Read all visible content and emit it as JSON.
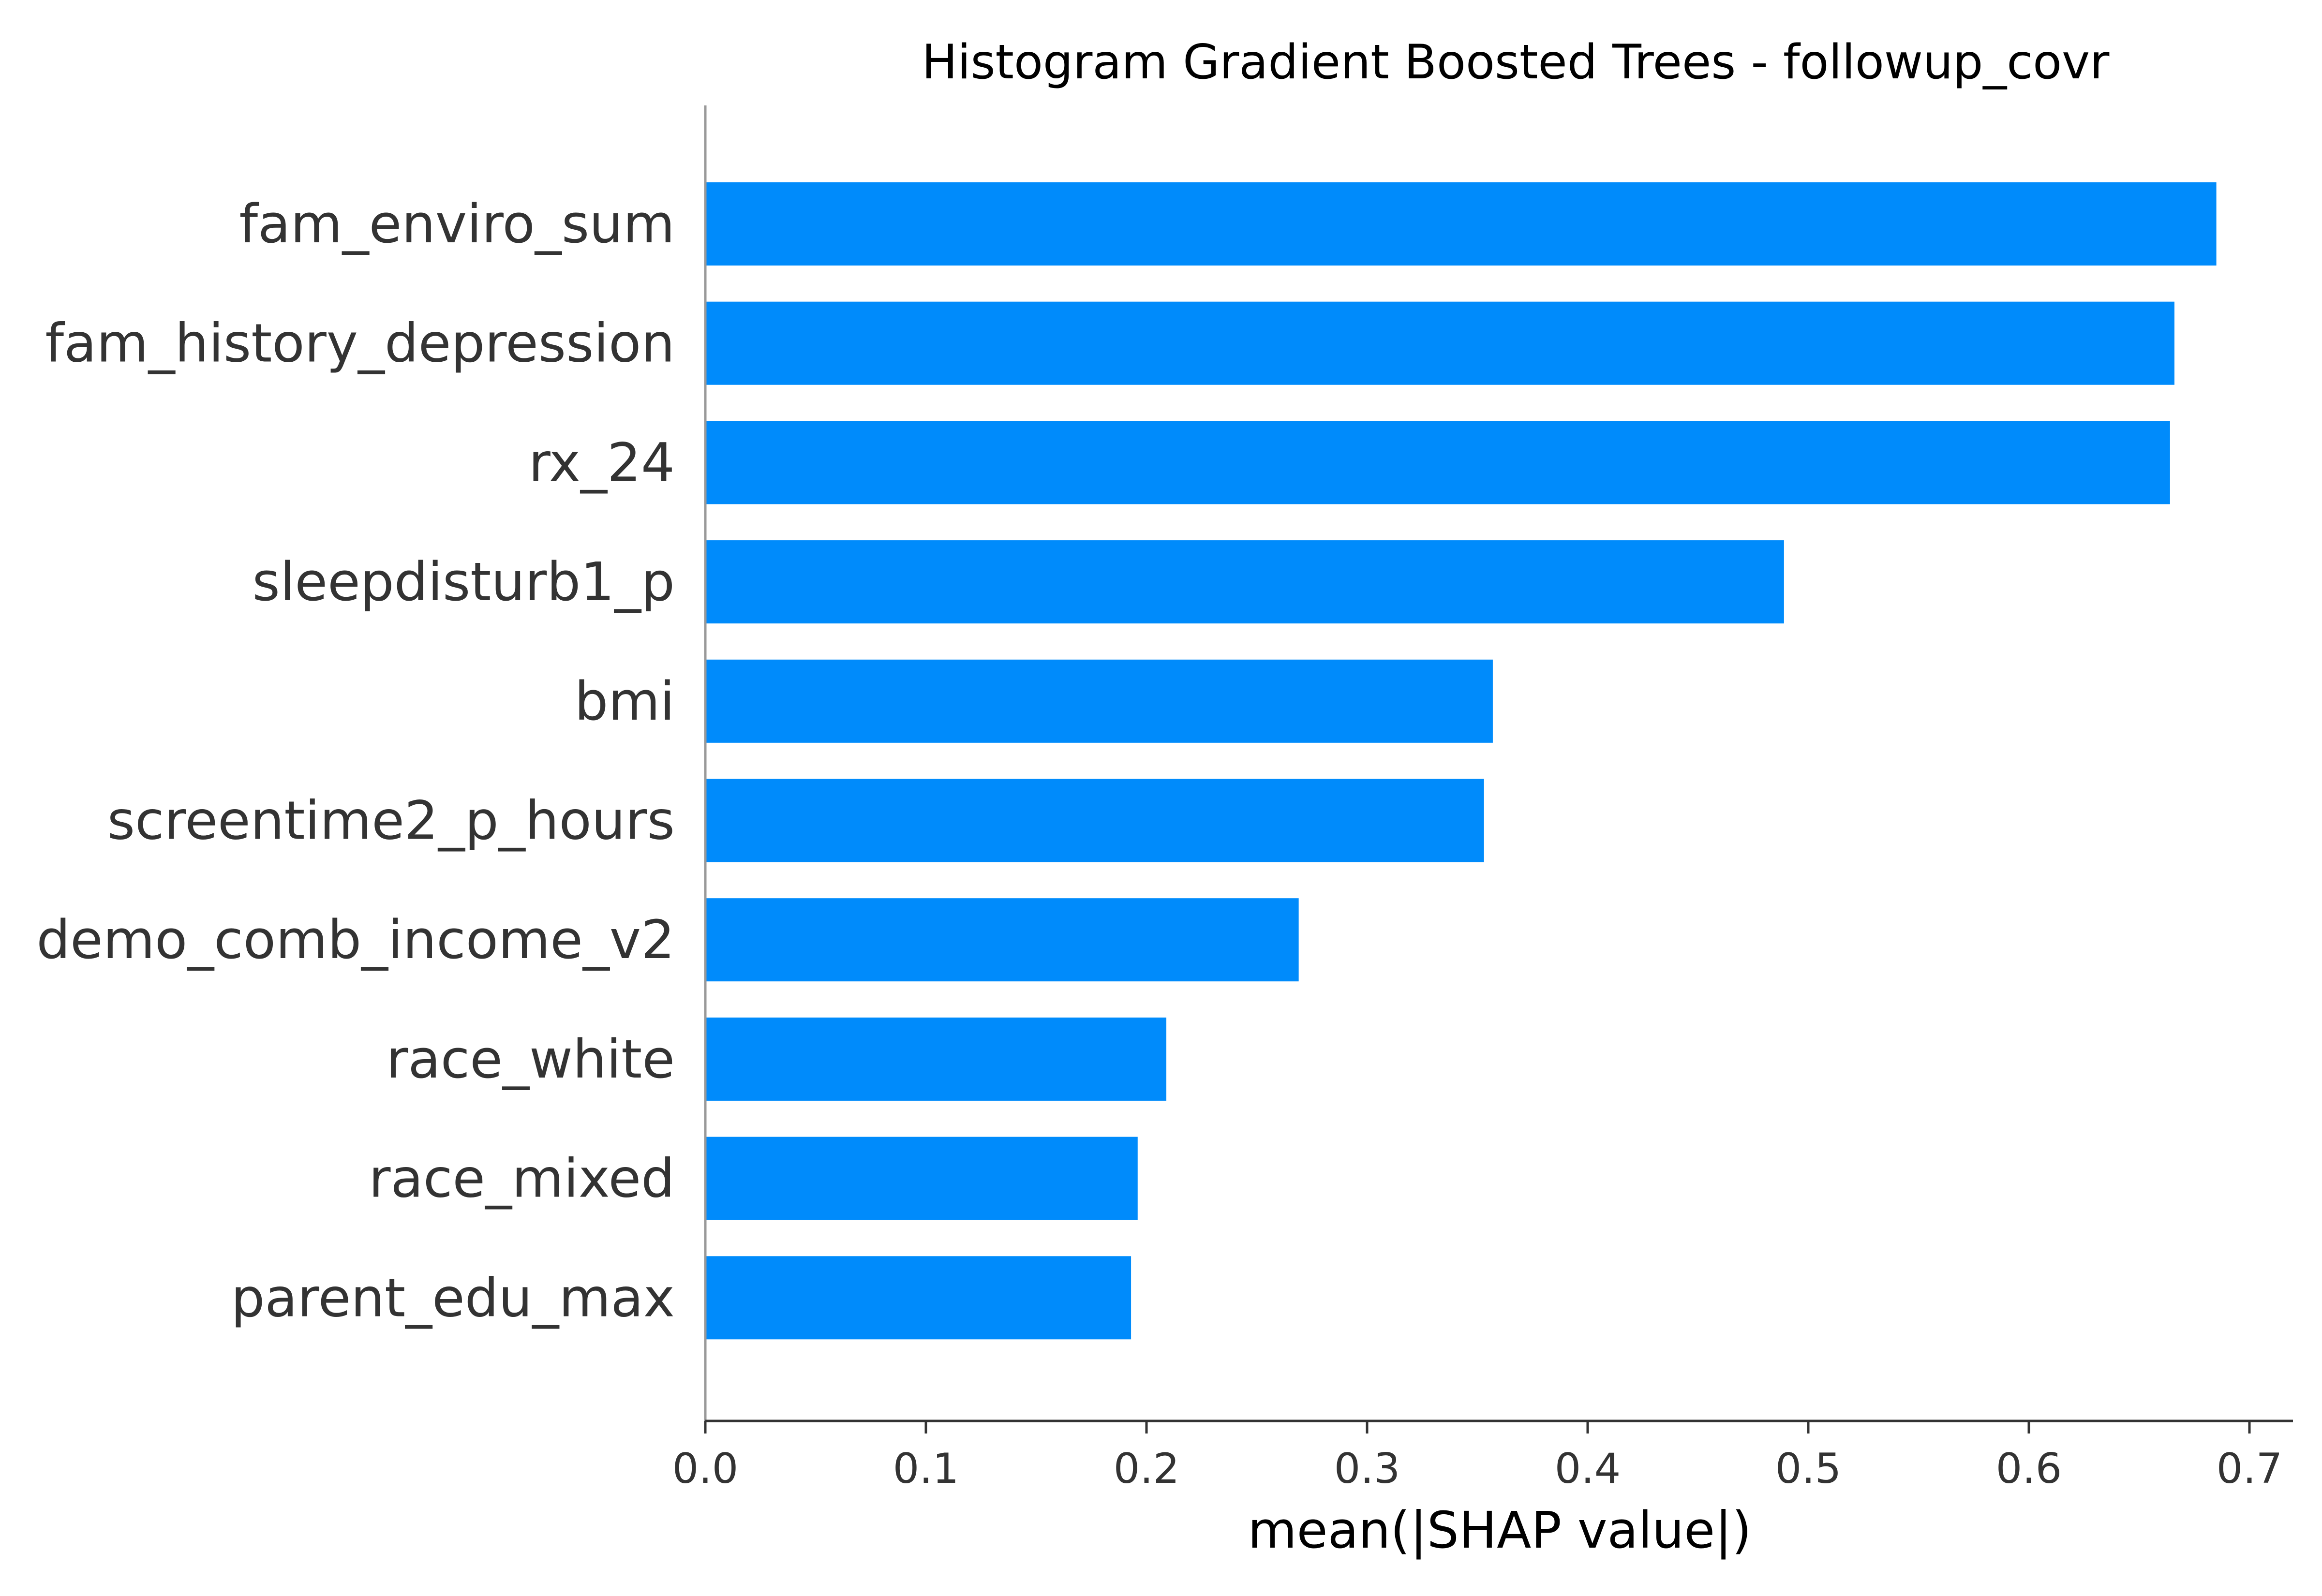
{
  "chart_data": {
    "type": "bar",
    "orientation": "horizontal",
    "title": "Histogram Gradient Boosted Trees - followup_covr",
    "xlabel": "mean(|SHAP value|)",
    "ylabel": "",
    "categories": [
      "fam_enviro_sum",
      "fam_history_depression",
      "rx_24",
      "sleepdisturb1_p",
      "bmi",
      "screentime2_p_hours",
      "demo_comb_income_v2",
      "race_white",
      "race_mixed",
      "parent_edu_max"
    ],
    "values": [
      0.685,
      0.666,
      0.664,
      0.489,
      0.357,
      0.353,
      0.269,
      0.209,
      0.196,
      0.193
    ],
    "xlim": [
      0,
      0.72
    ],
    "xticks": [
      0.0,
      0.1,
      0.2,
      0.3,
      0.4,
      0.5,
      0.6,
      0.7
    ],
    "xtick_labels": [
      "0.0",
      "0.1",
      "0.2",
      "0.3",
      "0.4",
      "0.5",
      "0.6",
      "0.7"
    ],
    "bar_color": "#008bfb",
    "grid": false,
    "legend": "none"
  }
}
